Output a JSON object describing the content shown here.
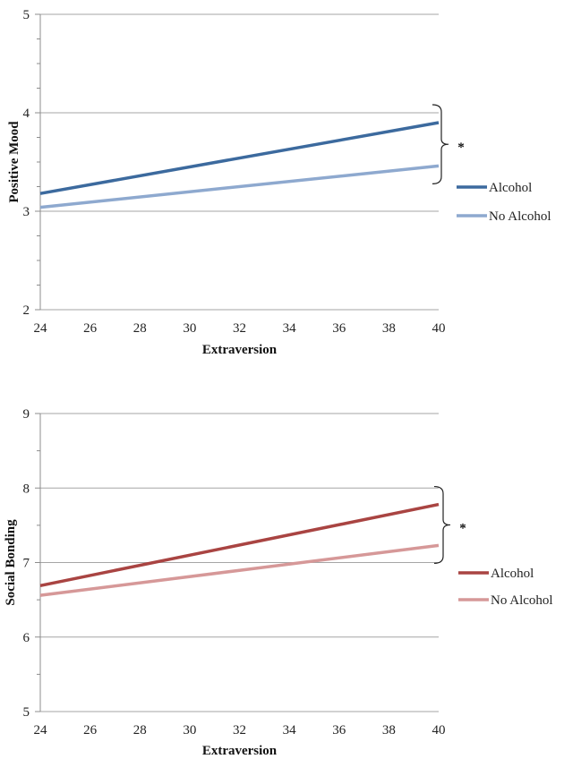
{
  "chart_data": [
    {
      "type": "line",
      "title": "",
      "xlabel": "Extraversion",
      "ylabel": "Positive Mood",
      "xlim": [
        24,
        40
      ],
      "ylim": [
        2,
        5
      ],
      "x_ticks": [
        24,
        26,
        28,
        30,
        32,
        34,
        36,
        38,
        40
      ],
      "y_ticks": [
        2,
        3,
        4,
        5
      ],
      "grid": "horizontal",
      "legend": "right",
      "significance": "*",
      "series": [
        {
          "name": "Alcohol",
          "color": "#3c6a9e",
          "x": [
            24,
            40
          ],
          "values": [
            3.18,
            3.9
          ]
        },
        {
          "name": "No Alcohol",
          "color": "#8ea9cf",
          "x": [
            24,
            40
          ],
          "values": [
            3.04,
            3.46
          ]
        }
      ]
    },
    {
      "type": "line",
      "title": "",
      "xlabel": "Extraversion",
      "ylabel": "Social Bonding",
      "xlim": [
        24,
        40
      ],
      "ylim": [
        5,
        9
      ],
      "x_ticks": [
        24,
        26,
        28,
        30,
        32,
        34,
        36,
        38,
        40
      ],
      "y_ticks": [
        5,
        6,
        7,
        8,
        9
      ],
      "grid": "horizontal",
      "legend": "right",
      "significance": "*",
      "series": [
        {
          "name": "Alcohol",
          "color": "#a94442",
          "x": [
            24,
            40
          ],
          "values": [
            6.69,
            7.78
          ]
        },
        {
          "name": "No Alcohol",
          "color": "#d69898",
          "x": [
            24,
            40
          ],
          "values": [
            6.56,
            7.23
          ]
        }
      ]
    }
  ]
}
